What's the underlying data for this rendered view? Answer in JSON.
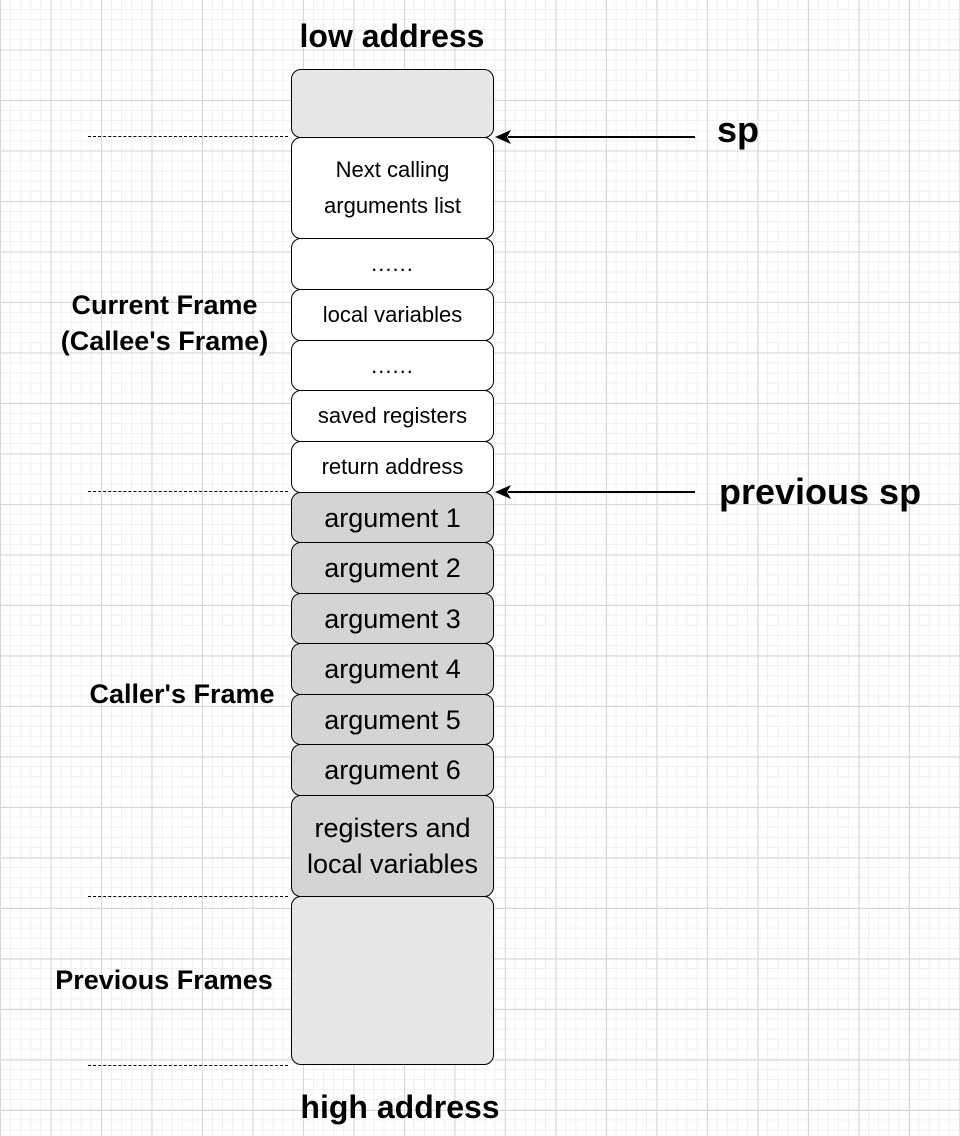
{
  "top_label": "low address",
  "bottom_label": "high address",
  "pointers": {
    "sp": "sp",
    "previous_sp": "previous sp"
  },
  "frames": {
    "current": "Current Frame\n(Callee's Frame)",
    "caller": "Caller's Frame",
    "previous": "Previous Frames"
  },
  "cells": [
    {
      "text": "",
      "fill": "#e6e6e6"
    },
    {
      "text": "Next calling\narguments list",
      "fill": "#ffffff"
    },
    {
      "text": "......",
      "fill": "#ffffff"
    },
    {
      "text": "local variables",
      "fill": "#ffffff"
    },
    {
      "text": "......",
      "fill": "#ffffff"
    },
    {
      "text": "saved registers",
      "fill": "#ffffff"
    },
    {
      "text": "return address",
      "fill": "#ffffff"
    },
    {
      "text": "argument 1",
      "fill": "#d4d4d4"
    },
    {
      "text": "argument 2",
      "fill": "#d4d4d4"
    },
    {
      "text": "argument 3",
      "fill": "#d4d4d4"
    },
    {
      "text": "argument 4",
      "fill": "#d4d4d4"
    },
    {
      "text": "argument 5",
      "fill": "#d4d4d4"
    },
    {
      "text": "argument 6",
      "fill": "#d4d4d4"
    },
    {
      "text": "registers and\nlocal variables",
      "fill": "#d4d4d4"
    },
    {
      "text": "",
      "fill": "#e6e6e6"
    }
  ]
}
